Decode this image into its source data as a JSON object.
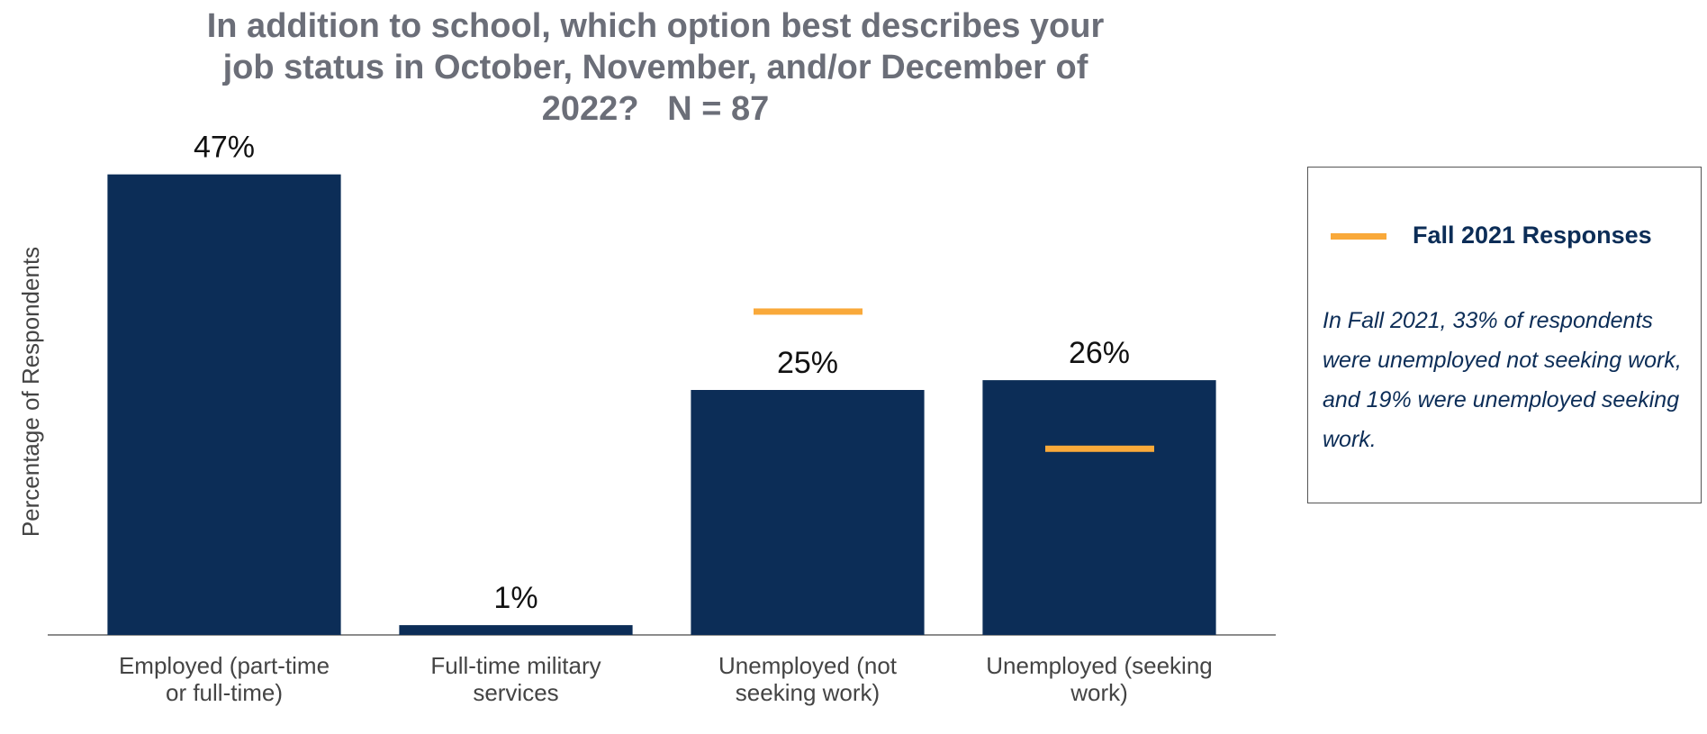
{
  "chart_data": {
    "type": "bar",
    "title": "In addition to school, which option best describes your job status in October, November, and/or December of 2022?   N = 87",
    "y_label": "Percentage of Respondents",
    "categories": [
      "Employed (part-time or full-time)",
      "Full-time military services",
      "Unemployed (not seeking work)",
      "Unemployed (seeking work)"
    ],
    "series": [
      {
        "color": "#0c2d57",
        "values": [
          47,
          1,
          25,
          26
        ],
        "value_labels": [
          "47%",
          "1%",
          "25%",
          "26%"
        ]
      },
      {
        "name": "Fall 2021 Responses",
        "color": "#f9a93a",
        "values": [
          null,
          null,
          33,
          19
        ]
      }
    ],
    "ylim": [
      0,
      50
    ],
    "legend_note": "In Fall 2021, 33% of respondents were unemployed not seeking work, and 19% were unemployed seeking work."
  }
}
